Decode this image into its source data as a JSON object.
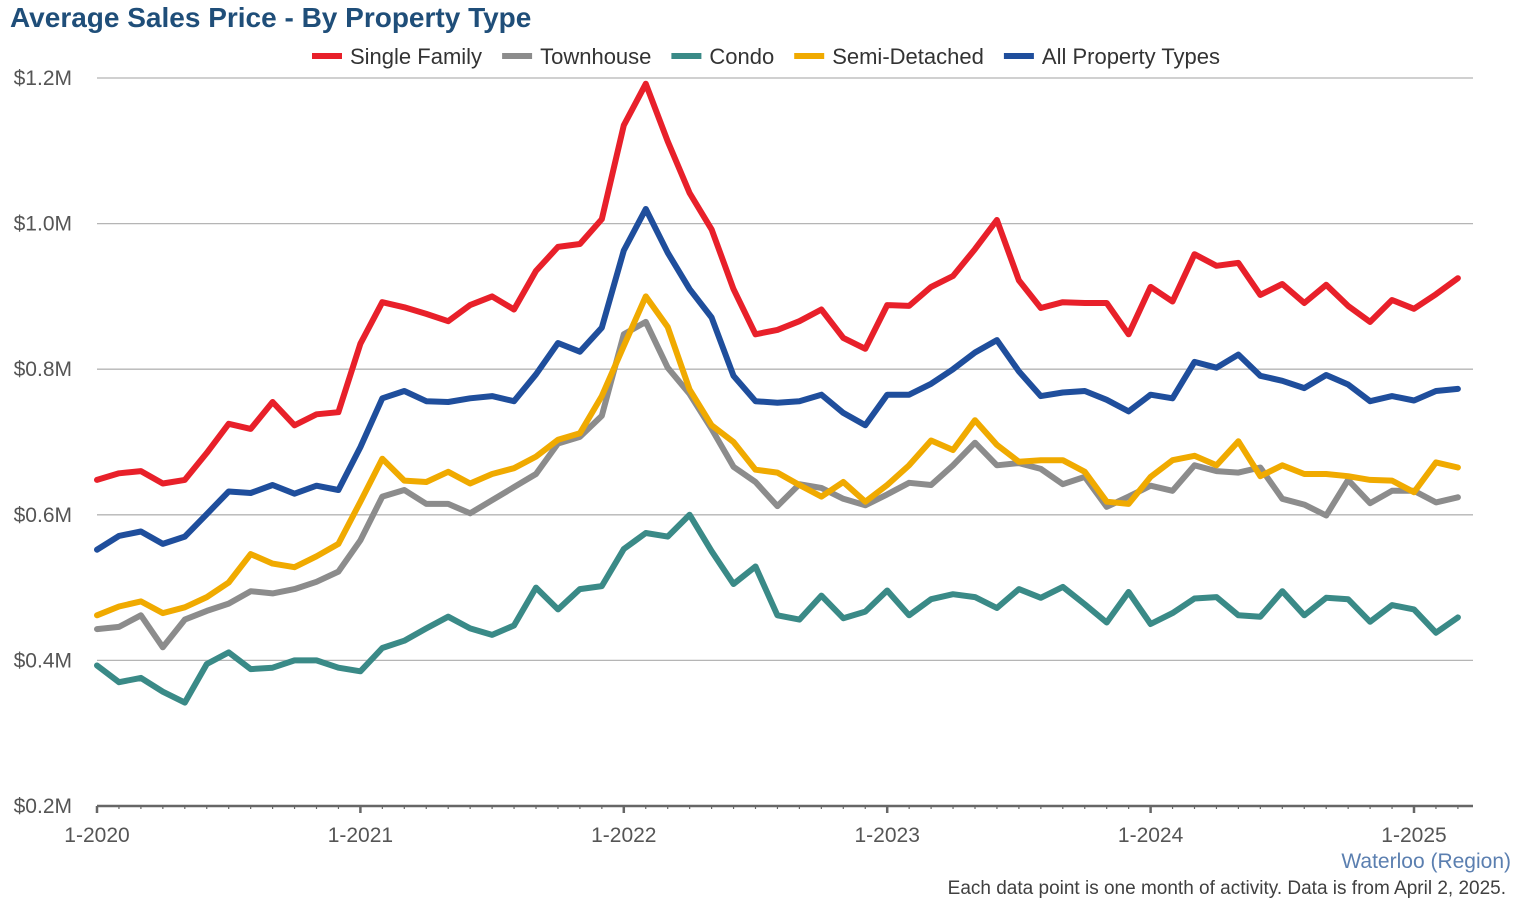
{
  "footer": {
    "region": "Waterloo (Region)",
    "note": "Each data point is one month of activity. Data is from April 2, 2025."
  },
  "chart_data": {
    "type": "line",
    "title": "Average Sales Price - By Property Type",
    "xlabel": "",
    "ylabel": "",
    "ylim": [
      0.2,
      1.2
    ],
    "y_ticks": [
      0.2,
      0.4,
      0.6,
      0.8,
      1.0,
      1.2
    ],
    "y_tick_labels": [
      "$0.2M",
      "$0.4M",
      "$0.6M",
      "$0.8M",
      "$1.0M",
      "$1.2M"
    ],
    "x_tick_labels": [
      "1-2020",
      "1-2021",
      "1-2022",
      "1-2023",
      "1-2024",
      "1-2025"
    ],
    "x_start": "2020-01",
    "x_end": "2025-03",
    "grid": true,
    "legend_position": "top",
    "series": [
      {
        "name": "Single Family",
        "color": "#e8202a",
        "values": [
          0.648,
          0.657,
          0.66,
          0.643,
          0.648,
          0.685,
          0.725,
          0.718,
          0.755,
          0.723,
          0.738,
          0.741,
          0.835,
          0.892,
          0.885,
          0.876,
          0.866,
          0.888,
          0.9,
          0.882,
          0.935,
          0.968,
          0.972,
          1.006,
          1.135,
          1.192,
          1.113,
          1.042,
          0.992,
          0.91,
          0.848,
          0.854,
          0.866,
          0.882,
          0.843,
          0.828,
          0.888,
          0.887,
          0.913,
          0.928,
          0.965,
          1.005,
          0.922,
          0.884,
          0.892,
          0.891,
          0.891,
          0.848,
          0.913,
          0.893,
          0.958,
          0.942,
          0.946,
          0.902,
          0.917,
          0.891,
          0.916,
          0.887,
          0.865,
          0.895,
          0.883,
          0.903,
          0.925
        ]
      },
      {
        "name": "Townhouse",
        "color": "#8c8c8c",
        "values": [
          0.443,
          0.446,
          0.462,
          0.418,
          0.456,
          0.468,
          0.478,
          0.495,
          0.492,
          0.498,
          0.508,
          0.522,
          0.565,
          0.625,
          0.634,
          0.615,
          0.615,
          0.602,
          0.62,
          0.638,
          0.656,
          0.698,
          0.707,
          0.736,
          0.848,
          0.865,
          0.802,
          0.766,
          0.718,
          0.666,
          0.645,
          0.612,
          0.642,
          0.637,
          0.622,
          0.613,
          0.628,
          0.644,
          0.641,
          0.668,
          0.699,
          0.668,
          0.671,
          0.663,
          0.642,
          0.652,
          0.611,
          0.625,
          0.64,
          0.633,
          0.668,
          0.66,
          0.658,
          0.665,
          0.622,
          0.614,
          0.599,
          0.648,
          0.616,
          0.633,
          0.633,
          0.617,
          0.624
        ]
      },
      {
        "name": "Condo",
        "color": "#3a8a87",
        "values": [
          0.393,
          0.37,
          0.376,
          0.357,
          0.342,
          0.395,
          0.411,
          0.388,
          0.39,
          0.4,
          0.4,
          0.39,
          0.385,
          0.417,
          0.427,
          0.444,
          0.46,
          0.444,
          0.435,
          0.448,
          0.5,
          0.47,
          0.498,
          0.502,
          0.553,
          0.575,
          0.57,
          0.6,
          0.55,
          0.505,
          0.529,
          0.462,
          0.456,
          0.489,
          0.458,
          0.467,
          0.496,
          0.462,
          0.484,
          0.491,
          0.487,
          0.472,
          0.498,
          0.486,
          0.501,
          0.477,
          0.452,
          0.494,
          0.45,
          0.465,
          0.485,
          0.487,
          0.462,
          0.46,
          0.495,
          0.462,
          0.486,
          0.484,
          0.453,
          0.476,
          0.47,
          0.438,
          0.459
        ]
      },
      {
        "name": "Semi-Detached",
        "color": "#f0aa00",
        "values": [
          0.462,
          0.474,
          0.481,
          0.465,
          0.473,
          0.487,
          0.507,
          0.546,
          0.533,
          0.528,
          0.543,
          0.56,
          0.618,
          0.677,
          0.647,
          0.645,
          0.659,
          0.643,
          0.656,
          0.664,
          0.68,
          0.703,
          0.712,
          0.763,
          0.832,
          0.9,
          0.858,
          0.772,
          0.723,
          0.7,
          0.662,
          0.658,
          0.641,
          0.625,
          0.645,
          0.618,
          0.641,
          0.668,
          0.702,
          0.689,
          0.73,
          0.696,
          0.673,
          0.675,
          0.675,
          0.659,
          0.618,
          0.615,
          0.652,
          0.675,
          0.681,
          0.668,
          0.701,
          0.653,
          0.668,
          0.656,
          0.656,
          0.653,
          0.648,
          0.647,
          0.631,
          0.672,
          0.665
        ]
      },
      {
        "name": "All Property Types",
        "color": "#1f4e9c",
        "values": [
          0.552,
          0.571,
          0.577,
          0.56,
          0.57,
          0.601,
          0.632,
          0.63,
          0.641,
          0.629,
          0.64,
          0.634,
          0.693,
          0.76,
          0.77,
          0.756,
          0.755,
          0.76,
          0.763,
          0.756,
          0.793,
          0.836,
          0.824,
          0.857,
          0.963,
          1.02,
          0.96,
          0.91,
          0.871,
          0.791,
          0.756,
          0.754,
          0.756,
          0.765,
          0.74,
          0.723,
          0.765,
          0.765,
          0.78,
          0.8,
          0.823,
          0.84,
          0.797,
          0.763,
          0.768,
          0.77,
          0.758,
          0.742,
          0.765,
          0.76,
          0.81,
          0.802,
          0.82,
          0.791,
          0.784,
          0.774,
          0.792,
          0.779,
          0.756,
          0.763,
          0.757,
          0.77,
          0.773
        ]
      }
    ]
  }
}
